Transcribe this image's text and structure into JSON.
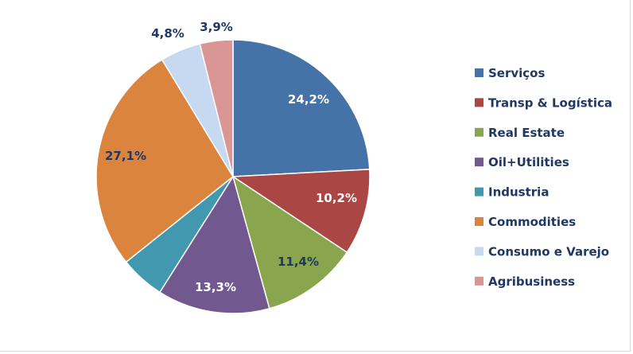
{
  "chart_data": {
    "type": "pie",
    "categories": [
      "Serviços",
      "Transp & Logística",
      "Real Estate",
      "Oil+Utilities",
      "Industria",
      "Commodities",
      "Consumo e Varejo",
      "Agribusiness"
    ],
    "values": [
      24.2,
      10.2,
      11.4,
      13.3,
      5.3,
      27.1,
      4.8,
      3.9
    ],
    "data_labels": [
      "24,2%",
      "10,2%",
      "11,4%",
      "13,3%",
      "",
      "27,1%",
      "4,8%",
      "3,9%"
    ],
    "colors": [
      "#4572a7",
      "#aa4643",
      "#89a54e",
      "#71588f",
      "#4198af",
      "#db843d",
      "#c6d9f1",
      "#d99694"
    ],
    "label_colors": [
      "#ffffff",
      "#ffffff",
      "#1f3864",
      "#ffffff",
      "#ffffff",
      "#1f3864",
      "#1f3864",
      "#1f3864"
    ],
    "legend_position": "right",
    "start_angle": "12 o'clock, clockwise"
  }
}
